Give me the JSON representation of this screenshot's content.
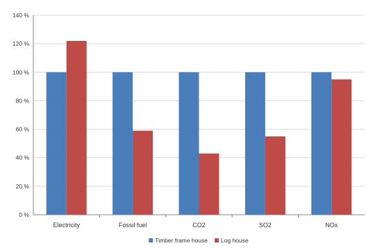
{
  "chart_data": {
    "type": "bar",
    "categories": [
      "Electricity",
      "Fossil fuel",
      "CO2",
      "SO2",
      "NOx"
    ],
    "series": [
      {
        "name": "Timber frame house",
        "color": "#4a7ebb",
        "values": [
          100,
          100,
          100,
          100,
          100
        ]
      },
      {
        "name": "Log house",
        "color": "#be4b48",
        "values": [
          122,
          59,
          43,
          55,
          95
        ]
      }
    ],
    "y_ticks": [
      "0 %",
      "20 %",
      "40 %",
      "60 %",
      "80 %",
      "100 %",
      "120 %",
      "140 %"
    ],
    "ylim": [
      0,
      140
    ],
    "grid": true,
    "legend_position": "bottom",
    "colors": {
      "grid": "#d9d9d9",
      "axis": "#868686"
    }
  }
}
